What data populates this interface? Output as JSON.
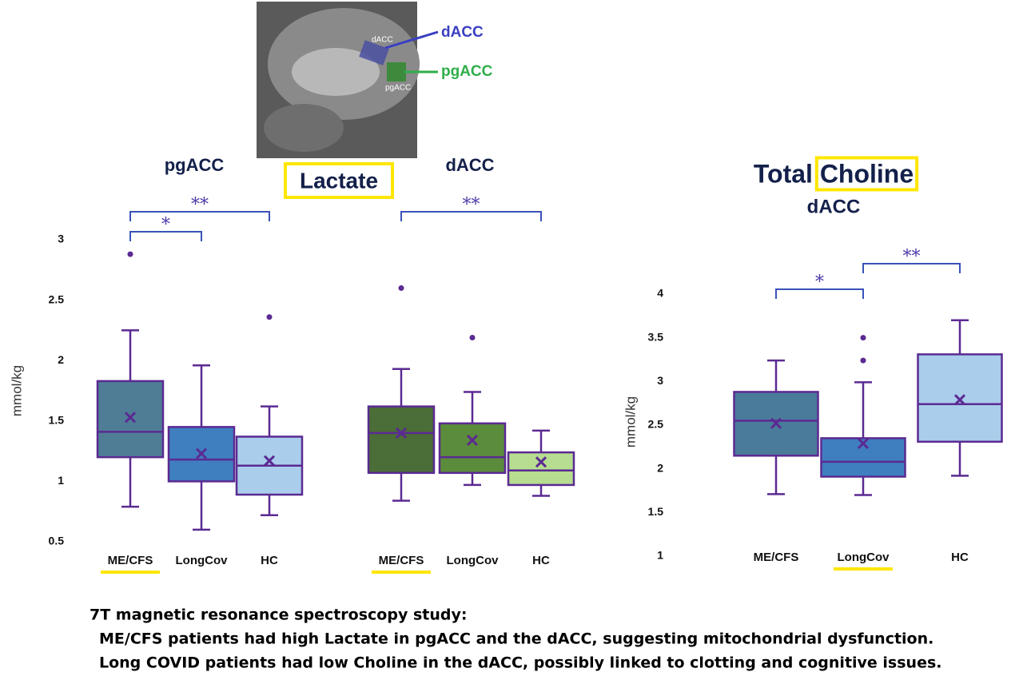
{
  "chart_data": [
    {
      "type": "box",
      "title": "pgACC",
      "y_label": "mmol/kg",
      "ylim": [
        0.5,
        3
      ],
      "yticks": [
        0.5,
        1,
        1.5,
        2,
        2.5,
        3
      ],
      "categories": [
        "ME/CFS",
        "LongCov",
        "HC"
      ],
      "highlight_category": 0,
      "colors": [
        "#4f7d96",
        "#3f7fc0",
        "#a9cdeb"
      ],
      "boxes": [
        {
          "min": 0.79,
          "q1": 1.2,
          "median": 1.41,
          "q3": 1.83,
          "max": 2.25,
          "mean": 1.53,
          "outliers": [
            2.88
          ]
        },
        {
          "min": 0.6,
          "q1": 1.0,
          "median": 1.18,
          "q3": 1.45,
          "max": 1.96,
          "mean": 1.23,
          "outliers": []
        },
        {
          "min": 0.72,
          "q1": 0.89,
          "median": 1.13,
          "q3": 1.37,
          "max": 1.62,
          "mean": 1.17,
          "outliers": [
            2.36
          ]
        }
      ],
      "brackets": [
        {
          "from": 0,
          "to": 2,
          "label": "**"
        },
        {
          "from": 0,
          "to": 1,
          "label": "*"
        }
      ]
    },
    {
      "type": "box",
      "title": "dACC",
      "ylim": [
        0.5,
        3
      ],
      "categories": [
        "ME/CFS",
        "LongCov",
        "HC"
      ],
      "highlight_category": 0,
      "colors": [
        "#4b6d37",
        "#5b8c3b",
        "#b6dd90"
      ],
      "boxes": [
        {
          "min": 0.84,
          "q1": 1.07,
          "median": 1.4,
          "q3": 1.62,
          "max": 1.93,
          "mean": 1.4,
          "outliers": [
            2.6
          ]
        },
        {
          "min": 0.97,
          "q1": 1.07,
          "median": 1.2,
          "q3": 1.48,
          "max": 1.74,
          "mean": 1.34,
          "outliers": [
            2.19
          ]
        },
        {
          "min": 0.88,
          "q1": 0.97,
          "median": 1.09,
          "q3": 1.24,
          "max": 1.42,
          "mean": 1.16,
          "outliers": []
        }
      ],
      "brackets": [
        {
          "from": 0,
          "to": 2,
          "label": "**"
        }
      ]
    },
    {
      "type": "box",
      "title": "Total Choline",
      "highlight_word": "Choline",
      "subtitle": "dACC",
      "y_label": "mmol/kg",
      "ylim": [
        1,
        4
      ],
      "yticks": [
        1,
        1.5,
        2,
        2.5,
        3,
        3.5,
        4
      ],
      "categories": [
        "ME/CFS",
        "LongCov",
        "HC"
      ],
      "highlight_category": 1,
      "colors": [
        "#4b7b9b",
        "#3f7fc0",
        "#a9cdeb"
      ],
      "boxes": [
        {
          "min": 1.71,
          "q1": 2.15,
          "median": 2.55,
          "q3": 2.88,
          "max": 3.24,
          "mean": 2.52,
          "outliers": []
        },
        {
          "min": 1.7,
          "q1": 1.91,
          "median": 2.08,
          "q3": 2.35,
          "max": 2.99,
          "mean": 2.29,
          "outliers": [
            3.5,
            3.24
          ]
        },
        {
          "min": 1.92,
          "q1": 2.31,
          "median": 2.74,
          "q3": 3.31,
          "max": 3.7,
          "mean": 2.79,
          "outliers": []
        }
      ],
      "brackets": [
        {
          "from": 1,
          "to": 2,
          "label": "**"
        },
        {
          "from": 0,
          "to": 1,
          "label": "*"
        }
      ]
    }
  ],
  "lactate_title": "Lactate",
  "brain_image": {
    "inner_labels": [
      "dACC",
      "pgACC"
    ],
    "callouts": [
      "dACC",
      "pgACC"
    ]
  },
  "caption": [
    "7T magnetic resonance spectroscopy study:",
    "ME/CFS patients had high Lactate in pgACC and the dACC, suggesting mitochondrial dysfunction.",
    "Long COVID patients had low Choline in the dACC, possibly linked to clotting and cognitive issues."
  ]
}
